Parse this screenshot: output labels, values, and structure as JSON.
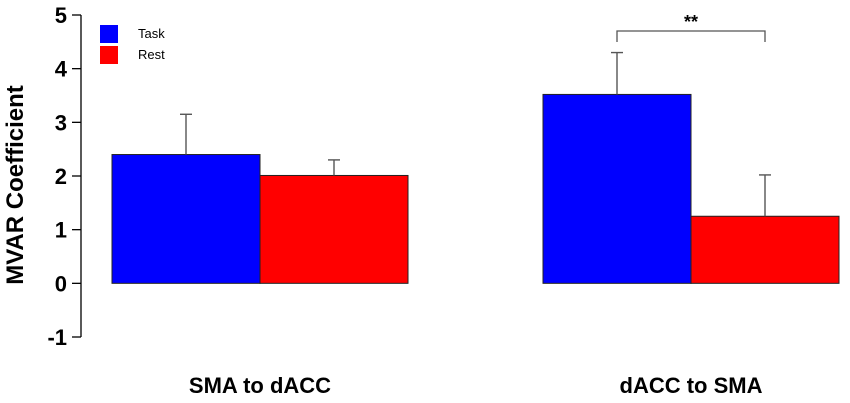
{
  "chart_data": {
    "type": "bar",
    "ylabel": "MVAR Coefficient",
    "ylim": [
      -1,
      5
    ],
    "yticks": [
      "-1",
      "0",
      "1",
      "2",
      "3",
      "4",
      "5"
    ],
    "categories": [
      "SMA to dACC",
      "dACC to SMA"
    ],
    "series": [
      {
        "name": "Task",
        "color": "#0000ff",
        "values": [
          2.4,
          3.52
        ],
        "errors": [
          0.75,
          0.78
        ]
      },
      {
        "name": "Rest",
        "color": "#ff0000",
        "values": [
          2.01,
          1.25
        ],
        "errors": [
          0.29,
          0.77
        ]
      }
    ],
    "legend_position": "top-left",
    "annotations": [
      {
        "text": "**",
        "category": "dACC to SMA",
        "between": [
          "Task",
          "Rest"
        ]
      }
    ]
  }
}
